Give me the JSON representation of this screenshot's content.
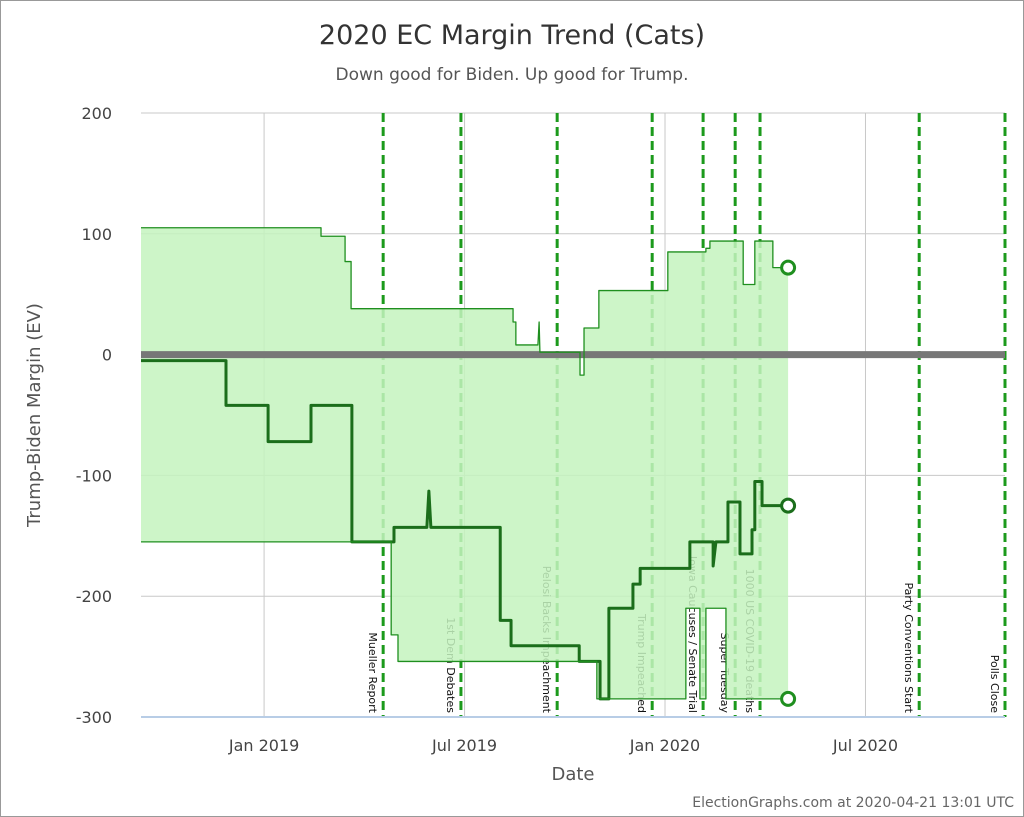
{
  "chart_data": {
    "type": "band-line",
    "title": "2020 EC Margin Trend (Cats)",
    "subtitle": "Down good for Biden. Up good for Trump.",
    "x_label": "Date",
    "y_label": "Trump-Biden Margin (EV)",
    "credit": "ElectionGraphs.com at 2020-04-21 13:01 UTC",
    "xlim": [
      2018.693,
      2020.848
    ],
    "xticks": [
      {
        "value": 2019,
        "label": "Jan 2019"
      },
      {
        "value": 2019.5,
        "label": "Jul 2019"
      },
      {
        "value": 2020,
        "label": "Jan 2020"
      },
      {
        "value": 2020.5,
        "label": "Jul 2020"
      }
    ],
    "ylim": [
      -300,
      200
    ],
    "yticks": [
      -300,
      -200,
      -100,
      0,
      100,
      200
    ],
    "grid": true,
    "zero_line": true,
    "band_color": "#c4f3be",
    "event_color": "#1c9a1c",
    "events": [
      {
        "label": "Mueller Report",
        "x": 2019.297
      },
      {
        "label": "1st Dem Debates",
        "x": 2019.491
      },
      {
        "label": "Pelosi Backs Impeachment",
        "x": 2019.731
      },
      {
        "label": "Trump Impeached",
        "x": 2019.968
      },
      {
        "label": "Iowa Caucuses / Senate Trial",
        "x": 2020.095
      },
      {
        "label": "Super Tuesday",
        "x": 2020.175
      },
      {
        "label": "1000 US COVID-19 deaths",
        "x": 2020.237
      },
      {
        "label": "Party Conventions Start",
        "x": 2020.634
      },
      {
        "label": "Polls Close",
        "x": 2020.848
      }
    ],
    "series": [
      {
        "role": "upper",
        "color": "#1f8f1f",
        "x": [
          2018.693,
          2019.142,
          2019.142,
          2019.202,
          2019.202,
          2019.217,
          2019.217,
          2019.621,
          2019.621,
          2019.628,
          2019.628,
          2019.683,
          2019.686,
          2019.688,
          2019.788,
          2019.788,
          2019.798,
          2019.798,
          2019.835,
          2019.835,
          2020.007,
          2020.007,
          2020.102,
          2020.102,
          2020.112,
          2020.112,
          2020.195,
          2020.195,
          2020.224,
          2020.224,
          2020.269,
          2020.269,
          2020.307
        ],
        "values": [
          105,
          105,
          98,
          98,
          77,
          77,
          38,
          38,
          27,
          27,
          8,
          8,
          27,
          2,
          2,
          -17,
          -17,
          22,
          22,
          53,
          53,
          85,
          85,
          88,
          88,
          94,
          94,
          58,
          58,
          94,
          94,
          72,
          72
        ]
      },
      {
        "role": "center",
        "color": "#1b6e1b",
        "x": [
          2018.693,
          2018.905,
          2018.905,
          2019.01,
          2019.01,
          2019.117,
          2019.117,
          2019.219,
          2019.219,
          2019.324,
          2019.324,
          2019.406,
          2019.411,
          2019.416,
          2019.589,
          2019.589,
          2019.616,
          2019.616,
          2019.786,
          2019.786,
          2019.838,
          2019.838,
          2019.86,
          2019.86,
          2019.92,
          2019.92,
          2019.938,
          2019.938,
          2020.062,
          2020.062,
          2020.12,
          2020.12,
          2020.127,
          2020.157,
          2020.157,
          2020.187,
          2020.187,
          2020.217,
          2020.217,
          2020.224,
          2020.224,
          2020.242,
          2020.242,
          2020.307
        ],
        "values": [
          -5,
          -5,
          -42,
          -42,
          -72,
          -72,
          -42,
          -42,
          -155,
          -155,
          -143,
          -143,
          -113,
          -143,
          -143,
          -220,
          -220,
          -241,
          -241,
          -254,
          -254,
          -285,
          -285,
          -210,
          -210,
          -190,
          -190,
          -177,
          -177,
          -155,
          -155,
          -175,
          -155,
          -155,
          -122,
          -122,
          -165,
          -165,
          -145,
          -145,
          -105,
          -105,
          -125,
          -125
        ]
      },
      {
        "role": "lower",
        "color": "#1f8f1f",
        "x": [
          2018.693,
          2019.317,
          2019.317,
          2019.334,
          2019.334,
          2019.83,
          2019.83,
          2020.052,
          2020.052,
          2020.087,
          2020.087,
          2020.102,
          2020.102,
          2020.152,
          2020.152,
          2020.307
        ],
        "values": [
          -155,
          -155,
          -232,
          -232,
          -254,
          -254,
          -285,
          -285,
          -210,
          -210,
          -285,
          -285,
          -210,
          -210,
          -285,
          -285
        ]
      }
    ]
  }
}
